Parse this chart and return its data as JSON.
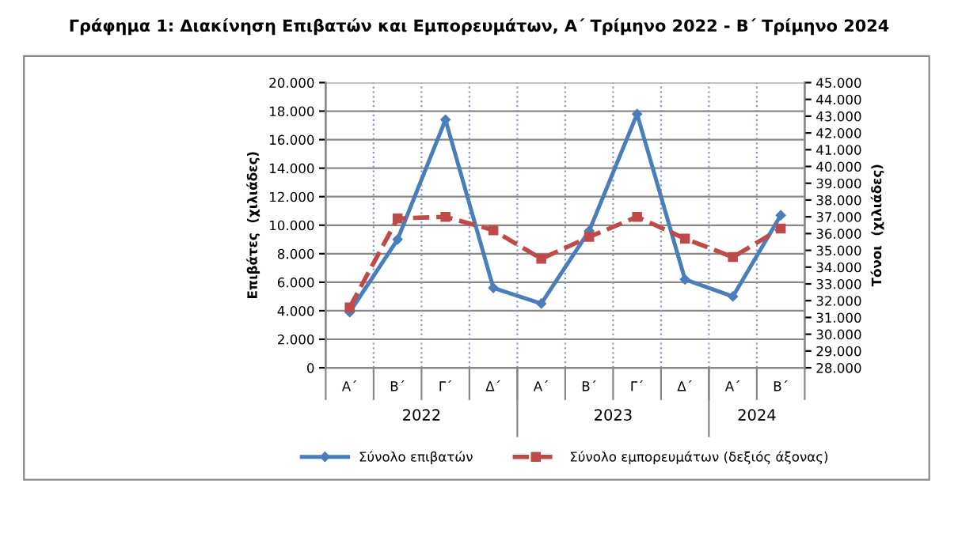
{
  "chart_data": {
    "type": "line",
    "title": "Γράφημα 1: Διακίνηση Επιβατών και Εμπορευμάτων, Α΄ Τρίμηνο 2022 - Β΄ Τρίμηνο 2024",
    "categories": [
      "Α΄",
      "Β΄",
      "Γ΄",
      "Δ΄",
      "Α΄",
      "Β΄",
      "Γ΄",
      "Δ΄",
      "Α΄",
      "Β΄"
    ],
    "series": [
      {
        "name": "Σύνολο επιβατών",
        "color": "#4a7ebb",
        "marker": "diamond",
        "line_style": "solid",
        "values": [
          3900,
          9000,
          17400,
          5600,
          4500,
          9600,
          17800,
          6200,
          5000,
          10700
        ]
      },
      {
        "name": "Σύνολο εμπορευμάτων (δεξιός άξονας)",
        "color": "#be4b48",
        "marker": "square",
        "line_style": "dashed",
        "axis": "y2",
        "values": [
          31600,
          36900,
          37000,
          36200,
          34500,
          35800,
          37000,
          35700,
          34600,
          36300
        ]
      }
    ],
    "ylabel": "Επιβάτες  (χιλιάδες)",
    "y2label": "Τόνοι  (χιλιάδες)",
    "ylim": [
      0,
      20000
    ],
    "yticks": [
      {
        "value": 0,
        "label": "0"
      },
      {
        "value": 2000,
        "label": "2.000"
      },
      {
        "value": 4000,
        "label": "4.000"
      },
      {
        "value": 6000,
        "label": "6.000"
      },
      {
        "value": 8000,
        "label": "8.000"
      },
      {
        "value": 10000,
        "label": "10.000"
      },
      {
        "value": 12000,
        "label": "12.000"
      },
      {
        "value": 14000,
        "label": "14.000"
      },
      {
        "value": 16000,
        "label": "16.000"
      },
      {
        "value": 18000,
        "label": "18.000"
      },
      {
        "value": 20000,
        "label": "20.000"
      }
    ],
    "y2lim": [
      28000,
      45000
    ],
    "y2ticks": [
      {
        "value": 28000,
        "label": "28.000"
      },
      {
        "value": 29000,
        "label": "29.000"
      },
      {
        "value": 30000,
        "label": "30.000"
      },
      {
        "value": 31000,
        "label": "31.000"
      },
      {
        "value": 32000,
        "label": "32.000"
      },
      {
        "value": 33000,
        "label": "33.000"
      },
      {
        "value": 34000,
        "label": "34.000"
      },
      {
        "value": 35000,
        "label": "35.000"
      },
      {
        "value": 36000,
        "label": "36.000"
      },
      {
        "value": 37000,
        "label": "37.000"
      },
      {
        "value": 38000,
        "label": "38.000"
      },
      {
        "value": 39000,
        "label": "39.000"
      },
      {
        "value": 40000,
        "label": "40.000"
      },
      {
        "value": 41000,
        "label": "41.000"
      },
      {
        "value": 42000,
        "label": "42.000"
      },
      {
        "value": 43000,
        "label": "43.000"
      },
      {
        "value": 44000,
        "label": "44.000"
      },
      {
        "value": 45000,
        "label": "45.000"
      }
    ],
    "annotations": [
      "2022",
      "2023",
      "2024"
    ],
    "grid": "y",
    "legend": "bottom"
  }
}
